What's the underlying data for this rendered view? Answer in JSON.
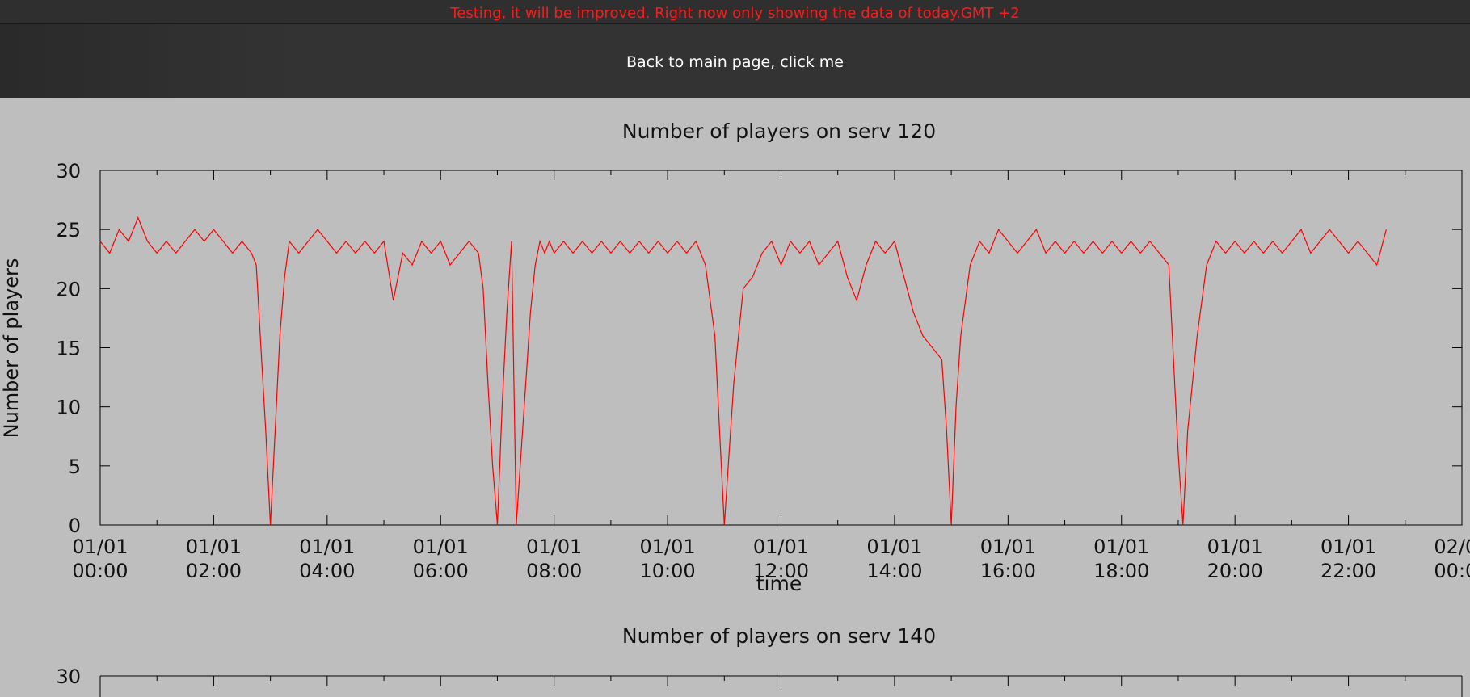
{
  "banner": {
    "text": "Testing, it will be improved. Right now only showing the data of today.GMT +2",
    "color": "#ff1a1a"
  },
  "nav": {
    "back_link": "Back to main page, click me"
  },
  "colors": {
    "background": "#bebebe",
    "series": "#ff0000"
  },
  "chart_data": [
    {
      "type": "line",
      "title": "Number of players on serv 120",
      "xlabel": "time",
      "ylabel": "Number of players",
      "ylim": [
        0,
        30
      ],
      "yticks": [
        0,
        5,
        10,
        15,
        20,
        25,
        30
      ],
      "xlim": [
        "01/01 00:00",
        "02/01 00:00"
      ],
      "xticks": [
        [
          "01/01",
          "00:00"
        ],
        [
          "01/01",
          "02:00"
        ],
        [
          "01/01",
          "04:00"
        ],
        [
          "01/01",
          "06:00"
        ],
        [
          "01/01",
          "08:00"
        ],
        [
          "01/01",
          "10:00"
        ],
        [
          "01/01",
          "12:00"
        ],
        [
          "01/01",
          "14:00"
        ],
        [
          "01/01",
          "16:00"
        ],
        [
          "01/01",
          "18:00"
        ],
        [
          "01/01",
          "20:00"
        ],
        [
          "01/01",
          "22:00"
        ],
        [
          "02/01",
          "00:00"
        ]
      ],
      "grid": false,
      "series": [
        {
          "color": "#ff0000",
          "x": [
            "00:00",
            "00:10",
            "00:20",
            "00:30",
            "00:40",
            "00:50",
            "01:00",
            "01:10",
            "01:20",
            "01:30",
            "01:40",
            "01:50",
            "02:00",
            "02:10",
            "02:20",
            "02:30",
            "02:40",
            "02:45",
            "02:50",
            "02:55",
            "03:00",
            "03:05",
            "03:10",
            "03:15",
            "03:20",
            "03:30",
            "03:40",
            "03:50",
            "04:00",
            "04:10",
            "04:20",
            "04:30",
            "04:40",
            "04:50",
            "05:00",
            "05:10",
            "05:20",
            "05:30",
            "05:40",
            "05:50",
            "06:00",
            "06:10",
            "06:20",
            "06:30",
            "06:40",
            "06:45",
            "06:50",
            "06:55",
            "07:00",
            "07:05",
            "07:10",
            "07:15",
            "07:20",
            "07:25",
            "07:30",
            "07:35",
            "07:40",
            "07:45",
            "07:50",
            "07:55",
            "08:00",
            "08:10",
            "08:20",
            "08:30",
            "08:40",
            "08:50",
            "09:00",
            "09:10",
            "09:20",
            "09:30",
            "09:40",
            "09:50",
            "10:00",
            "10:10",
            "10:20",
            "10:30",
            "10:40",
            "10:50",
            "10:55",
            "11:00",
            "11:05",
            "11:10",
            "11:15",
            "11:20",
            "11:30",
            "11:40",
            "11:50",
            "12:00",
            "12:10",
            "12:20",
            "12:30",
            "12:40",
            "12:50",
            "13:00",
            "13:10",
            "13:20",
            "13:30",
            "13:40",
            "13:50",
            "14:00",
            "14:10",
            "14:20",
            "14:30",
            "14:40",
            "14:50",
            "14:55",
            "15:00",
            "15:05",
            "15:10",
            "15:20",
            "15:30",
            "15:40",
            "15:50",
            "16:00",
            "16:10",
            "16:20",
            "16:30",
            "16:40",
            "16:50",
            "17:00",
            "17:10",
            "17:20",
            "17:30",
            "17:40",
            "17:50",
            "18:00",
            "18:10",
            "18:20",
            "18:30",
            "18:40",
            "18:50",
            "18:55",
            "19:00",
            "19:05",
            "19:10",
            "19:20",
            "19:30",
            "19:40",
            "19:50",
            "20:00",
            "20:10",
            "20:20",
            "20:30",
            "20:40",
            "20:50",
            "21:00",
            "21:10",
            "21:20",
            "21:30",
            "21:40",
            "21:50",
            "22:00",
            "22:10",
            "22:20",
            "22:30",
            "22:40"
          ],
          "values": [
            24,
            23,
            25,
            24,
            26,
            24,
            23,
            24,
            23,
            24,
            25,
            24,
            25,
            24,
            23,
            24,
            23,
            22,
            15,
            8,
            0,
            8,
            16,
            21,
            24,
            23,
            24,
            25,
            24,
            23,
            24,
            23,
            24,
            23,
            24,
            19,
            23,
            22,
            24,
            23,
            24,
            22,
            23,
            24,
            23,
            20,
            12,
            5,
            0,
            10,
            18,
            24,
            0,
            6,
            12,
            18,
            22,
            24,
            23,
            24,
            23,
            24,
            23,
            24,
            23,
            24,
            23,
            24,
            23,
            24,
            23,
            24,
            23,
            24,
            23,
            24,
            22,
            16,
            8,
            0,
            6,
            12,
            16,
            20,
            21,
            23,
            24,
            22,
            24,
            23,
            24,
            22,
            23,
            24,
            21,
            19,
            22,
            24,
            23,
            24,
            21,
            18,
            16,
            15,
            14,
            8,
            0,
            10,
            16,
            22,
            24,
            23,
            25,
            24,
            23,
            24,
            25,
            23,
            24,
            23,
            24,
            23,
            24,
            23,
            24,
            23,
            24,
            23,
            24,
            23,
            22,
            14,
            6,
            0,
            8,
            16,
            22,
            24,
            23,
            24,
            23,
            24,
            23,
            24,
            23,
            24,
            25,
            23,
            24,
            25,
            24,
            23,
            24,
            23,
            22,
            25
          ]
        }
      ]
    },
    {
      "type": "line",
      "title": "Number of players on serv 140",
      "ylim": [
        0,
        30
      ],
      "yticks": [
        30
      ],
      "series": []
    }
  ]
}
